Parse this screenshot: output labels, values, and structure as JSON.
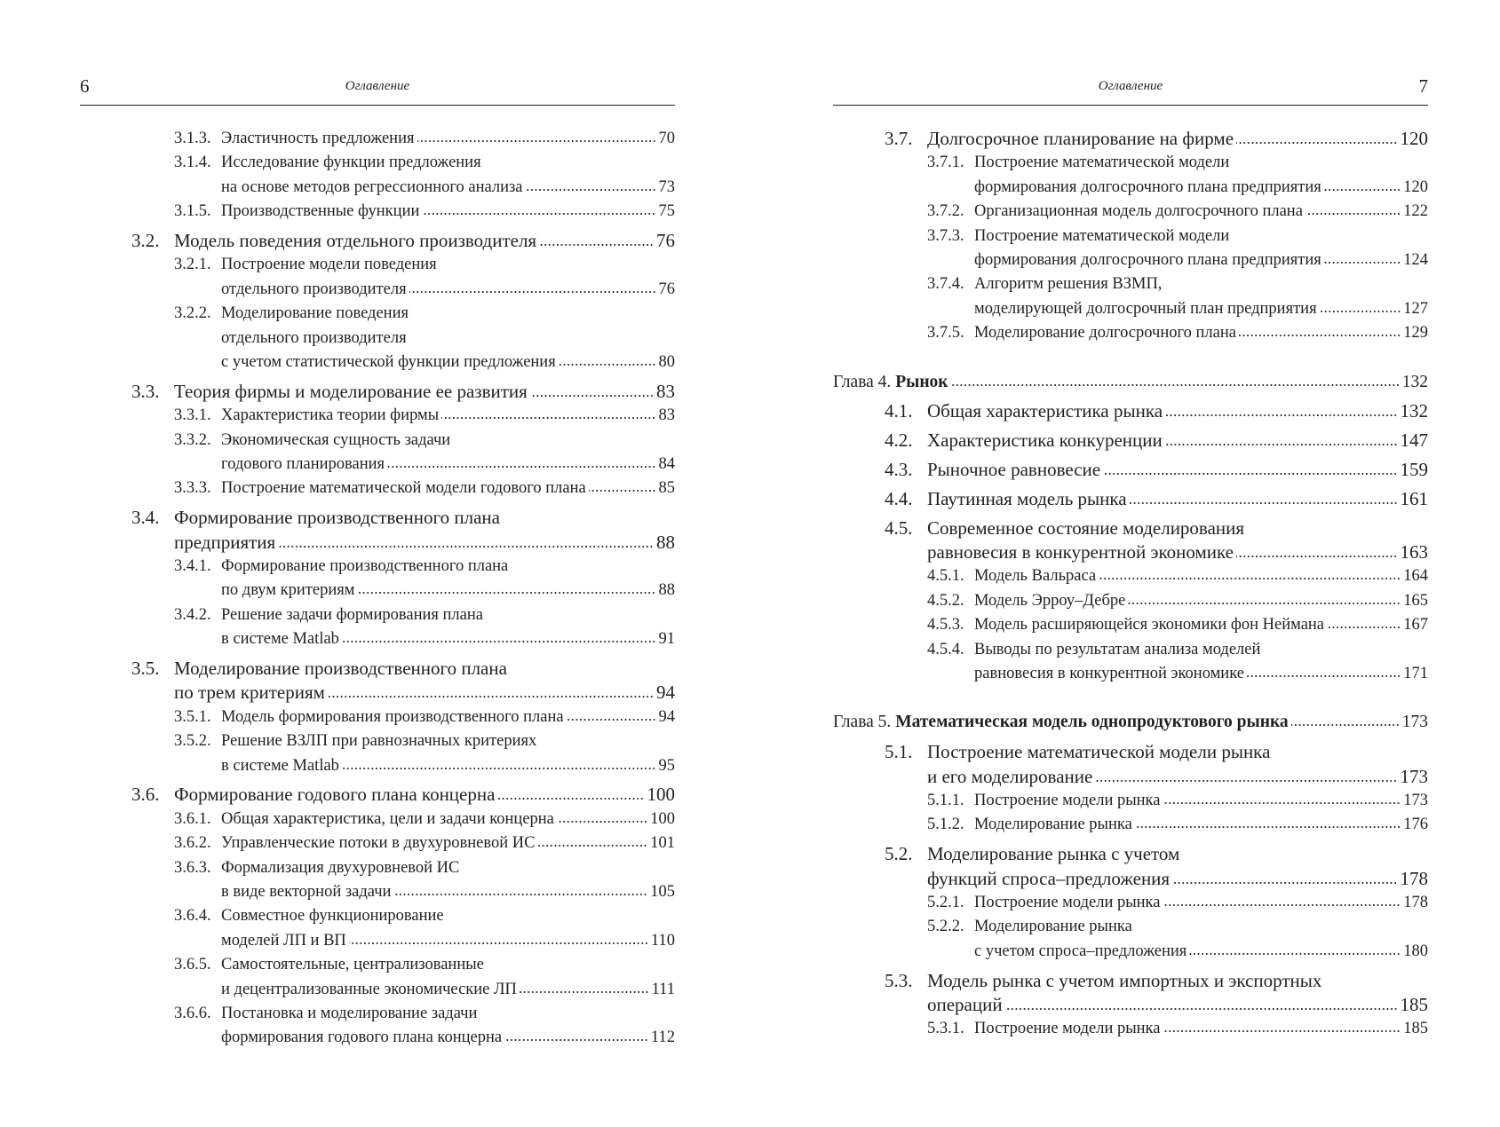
{
  "pages": [
    {
      "number": "6",
      "header": "Оглавление",
      "entries": [
        {
          "number": "3.1.3.",
          "lines": [
            "Эластичность предложения"
          ],
          "page": "70"
        },
        {
          "number": "3.1.4.",
          "lines": [
            "Исследование функции предложения",
            "на основе методов регрессионного анализа"
          ],
          "page": "73"
        },
        {
          "number": "3.1.5.",
          "lines": [
            "Производственные функции"
          ],
          "page": "75"
        },
        {
          "number": "3.2.",
          "lines": [
            "Модель поведения отдельного производителя"
          ],
          "page": "76"
        },
        {
          "number": "3.2.1.",
          "lines": [
            "Построение модели поведения",
            "отдельного производителя"
          ],
          "page": "76"
        },
        {
          "number": "3.2.2.",
          "lines": [
            "Моделирование поведения",
            "отдельного производителя",
            "с учетом статистической функции предложения"
          ],
          "page": "80"
        },
        {
          "number": "3.3.",
          "lines": [
            "Теория фирмы и моделирование ее развития"
          ],
          "page": "83"
        },
        {
          "number": "3.3.1.",
          "lines": [
            "Характеристика теории фирмы"
          ],
          "page": "83"
        },
        {
          "number": "3.3.2.",
          "lines": [
            "Экономическая сущность задачи",
            "годового планирования"
          ],
          "page": "84"
        },
        {
          "number": "3.3.3.",
          "lines": [
            "Построение математической модели годового плана"
          ],
          "page": "85"
        },
        {
          "number": "3.4.",
          "lines": [
            "Формирование производственного плана",
            "предприятия"
          ],
          "page": "88"
        },
        {
          "number": "3.4.1.",
          "lines": [
            "Формирование производственного плана",
            "по двум критериям"
          ],
          "page": "88"
        },
        {
          "number": "3.4.2.",
          "lines": [
            "Решение задачи формирования плана",
            "в системе Matlab"
          ],
          "page": "91"
        },
        {
          "number": "3.5.",
          "lines": [
            "Моделирование производственного плана",
            "по трем критериям"
          ],
          "page": "94"
        },
        {
          "number": "3.5.1.",
          "lines": [
            "Модель формирования производственного плана"
          ],
          "page": "94"
        },
        {
          "number": "3.5.2.",
          "lines": [
            "Решение ВЗЛП при равнозначных критериях",
            "в системе Matlab"
          ],
          "page": "95"
        },
        {
          "number": "3.6.",
          "lines": [
            "Формирование годового плана концерна"
          ],
          "page": "100"
        },
        {
          "number": "3.6.1.",
          "lines": [
            "Общая характеристика, цели и задачи концерна"
          ],
          "page": "100"
        },
        {
          "number": "3.6.2.",
          "lines": [
            "Управленческие потоки в двухуровневой ИС"
          ],
          "page": "101"
        },
        {
          "number": "3.6.3.",
          "lines": [
            "Формализация двухуровневой ИС",
            "в виде векторной задачи"
          ],
          "page": "105"
        },
        {
          "number": "3.6.4.",
          "lines": [
            "Совместное функционирование",
            "моделей ЛП и ВП"
          ],
          "page": "110"
        },
        {
          "number": "3.6.5.",
          "lines": [
            "Самостоятельные, централизованные",
            "и децентрализованные экономические ЛП"
          ],
          "page": "111"
        },
        {
          "number": "3.6.6.",
          "lines": [
            "Постановка и моделирование задачи",
            "формирования годового плана концерна"
          ],
          "page": "112"
        }
      ]
    },
    {
      "number": "7",
      "header": "Оглавление",
      "entries": [
        {
          "number": "3.7.",
          "lines": [
            "Долгосрочное планирование на фирме"
          ],
          "page": "120"
        },
        {
          "number": "3.7.1.",
          "lines": [
            "Построение математической модели",
            "формирования долгосрочного плана предприятия"
          ],
          "page": "120"
        },
        {
          "number": "3.7.2.",
          "lines": [
            "Организационная модель долгосрочного плана"
          ],
          "page": "122"
        },
        {
          "number": "3.7.3.",
          "lines": [
            "Построение математической модели",
            "формирования долгосрочного плана предприятия"
          ],
          "page": "124"
        },
        {
          "number": "3.7.4.",
          "lines": [
            "Алгоритм решения ВЗМП,",
            "моделирующей долгосрочный план предприятия"
          ],
          "page": "127"
        },
        {
          "number": "3.7.5.",
          "lines": [
            "Моделирование долгосрочного плана"
          ],
          "page": "129"
        },
        {
          "number": "Глава 4.",
          "lines": [
            "Рынок"
          ],
          "page": "132"
        },
        {
          "number": "4.1.",
          "lines": [
            "Общая характеристика рынка"
          ],
          "page": "132"
        },
        {
          "number": "4.2.",
          "lines": [
            "Характеристика конкуренции"
          ],
          "page": "147"
        },
        {
          "number": "4.3.",
          "lines": [
            "Рыночное равновесие"
          ],
          "page": "159"
        },
        {
          "number": "4.4.",
          "lines": [
            "Паутинная модель рынка"
          ],
          "page": "161"
        },
        {
          "number": "4.5.",
          "lines": [
            "Современное состояние моделирования",
            "равновесия в конкурентной экономике"
          ],
          "page": "163"
        },
        {
          "number": "4.5.1.",
          "lines": [
            "Модель Вальраса"
          ],
          "page": "164"
        },
        {
          "number": "4.5.2.",
          "lines": [
            "Модель Эрроу–Дебре"
          ],
          "page": "165"
        },
        {
          "number": "4.5.3.",
          "lines": [
            "Модель расширяющейся экономики фон Неймана"
          ],
          "page": "167"
        },
        {
          "number": "4.5.4.",
          "lines": [
            "Выводы по результатам анализа моделей",
            "равновесия в конкурентной экономике"
          ],
          "page": "171"
        },
        {
          "number": "Глава 5.",
          "lines": [
            "Математическая модель однопродуктового рынка"
          ],
          "page": "173"
        },
        {
          "number": "5.1.",
          "lines": [
            "Построение математической модели рынка",
            "и его моделирование"
          ],
          "page": "173"
        },
        {
          "number": "5.1.1.",
          "lines": [
            "Построение модели рынка"
          ],
          "page": "173"
        },
        {
          "number": "5.1.2.",
          "lines": [
            "Моделирование рынка"
          ],
          "page": "176"
        },
        {
          "number": "5.2.",
          "lines": [
            "Моделирование рынка с учетом",
            "функций спроса–предложения"
          ],
          "page": "178"
        },
        {
          "number": "5.2.1.",
          "lines": [
            "Построение модели рынка"
          ],
          "page": "178"
        },
        {
          "number": "5.2.2.",
          "lines": [
            "Моделирование рынка",
            "с учетом спроса–предложения"
          ],
          "page": "180"
        },
        {
          "number": "5.3.",
          "lines": [
            "Модель рынка с учетом импортных и экспортных",
            "операций"
          ],
          "page": "185"
        },
        {
          "number": "5.3.1.",
          "lines": [
            "Построение модели рынка"
          ],
          "page": "185"
        }
      ]
    }
  ]
}
